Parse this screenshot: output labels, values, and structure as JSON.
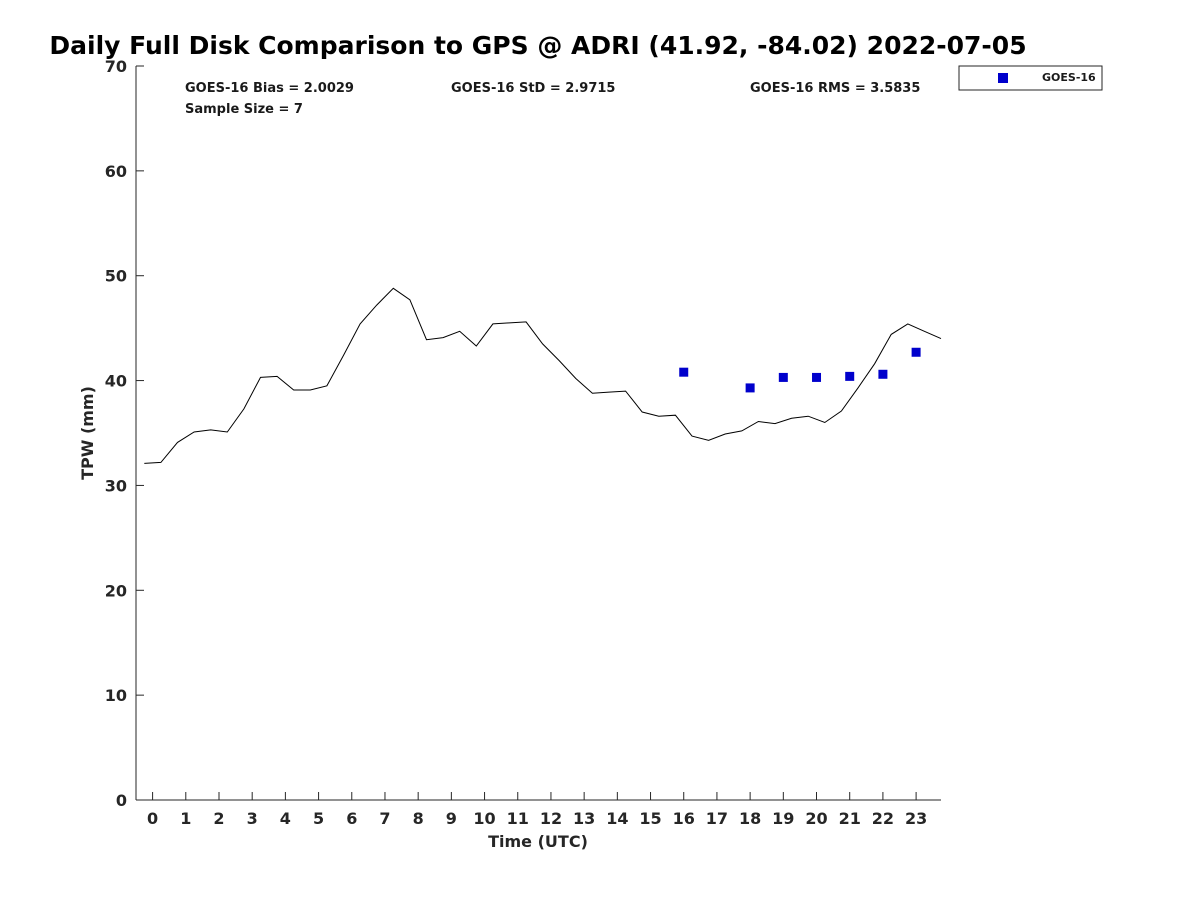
{
  "chart_data": {
    "type": "line",
    "title": "Daily Full Disk Comparison to GPS @ ADRI (41.92, -84.02) 2022-07-05",
    "xlabel": "Time (UTC)",
    "ylabel": "TPW (mm)",
    "xlim": [
      -0.5,
      23.75
    ],
    "ylim": [
      0,
      70
    ],
    "grid": false,
    "legend_position": "top-right outside",
    "x_ticks": [
      0,
      1,
      2,
      3,
      4,
      5,
      6,
      7,
      8,
      9,
      10,
      11,
      12,
      13,
      14,
      15,
      16,
      17,
      18,
      19,
      20,
      21,
      22,
      23
    ],
    "x_tick_labels": [
      "0",
      "1",
      "2",
      "3",
      "4",
      "5",
      "6",
      "7",
      "8",
      "9",
      "10",
      "11",
      "12",
      "13",
      "14",
      "15",
      "16",
      "17",
      "18",
      "19",
      "20",
      "21",
      "22",
      "23"
    ],
    "y_ticks": [
      0,
      10,
      20,
      30,
      40,
      50,
      60,
      70
    ],
    "y_tick_labels": [
      "0",
      "10",
      "20",
      "30",
      "40",
      "50",
      "60",
      "70"
    ],
    "stats": {
      "bias": "GOES-16 Bias = 2.0029",
      "std": "GOES-16 StD = 2.9715",
      "rms": "GOES-16 RMS = 3.5835",
      "sample_size": "Sample Size = 7"
    },
    "series": [
      {
        "kind": "line",
        "color": "#000000",
        "x": [
          -0.25,
          0.25,
          0.75,
          1.25,
          1.75,
          2.25,
          2.75,
          3.25,
          3.75,
          4.25,
          4.75,
          5.25,
          5.75,
          6.25,
          6.75,
          7.25,
          7.75,
          8.25,
          8.75,
          9.25,
          9.75,
          10.25,
          10.75,
          11.25,
          11.75,
          12.25,
          12.75,
          13.25,
          13.75,
          14.25,
          14.75,
          15.25,
          15.75,
          16.25,
          16.75,
          17.25,
          17.75,
          18.25,
          18.75,
          19.25,
          19.75,
          20.25,
          20.75,
          21.25,
          21.75,
          22.25,
          22.75,
          23.25,
          23.75
        ],
        "y": [
          32.1,
          32.2,
          34.1,
          35.1,
          35.3,
          35.1,
          37.3,
          40.3,
          40.4,
          39.1,
          39.1,
          39.5,
          42.4,
          45.4,
          47.2,
          48.8,
          47.7,
          43.9,
          44.1,
          44.7,
          43.3,
          45.4,
          45.5,
          45.6,
          43.5,
          41.9,
          40.2,
          38.8,
          38.9,
          39.0,
          37.0,
          36.6,
          36.7,
          34.7,
          34.3,
          34.9,
          35.2,
          36.1,
          35.9,
          36.4,
          36.6,
          36.0,
          37.1,
          39.3,
          41.6,
          44.4,
          45.4,
          44.7,
          44.0
        ]
      },
      {
        "name": "GOES-16",
        "kind": "scatter",
        "marker": "square",
        "color": "#0000cc",
        "x": [
          16,
          18,
          19,
          20,
          21,
          22,
          23
        ],
        "y": [
          40.8,
          39.3,
          40.3,
          40.3,
          40.4,
          40.6,
          42.7
        ]
      }
    ]
  }
}
